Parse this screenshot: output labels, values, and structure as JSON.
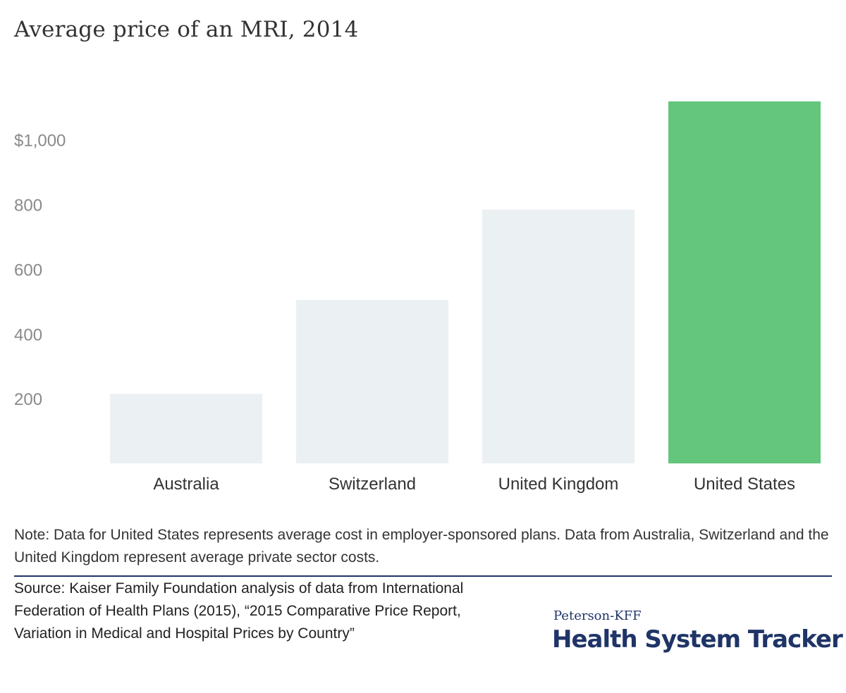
{
  "chart_data": {
    "type": "bar",
    "title": "Average price of an MRI, 2014",
    "categories": [
      "Australia",
      "Switzerland",
      "United Kingdom",
      "United States"
    ],
    "values": [
      215,
      505,
      785,
      1119
    ],
    "ylim": [
      0,
      1119
    ],
    "yticks": [
      {
        "value": 200,
        "label": "200"
      },
      {
        "value": 400,
        "label": "400"
      },
      {
        "value": 600,
        "label": "600"
      },
      {
        "value": 800,
        "label": "800"
      },
      {
        "value": 1000,
        "label": "$1,000"
      }
    ],
    "grid": false,
    "colors": {
      "default_bar": "#ebf0f3",
      "highlight_bar": "#64c57d",
      "highlight_category": "United States"
    }
  },
  "note": "Note: Data for United States represents average cost in employer-sponsored plans. Data from Australia, Switzerland and the United Kingdom represent average private sector costs.",
  "source": "Source: Kaiser Family Foundation analysis of data from International Federation of Health Plans (2015), “2015 Comparative Price Report, Variation in Medical and Hospital Prices by Country”",
  "brand": {
    "top": "Peterson-KFF",
    "main": "Health System Tracker"
  }
}
